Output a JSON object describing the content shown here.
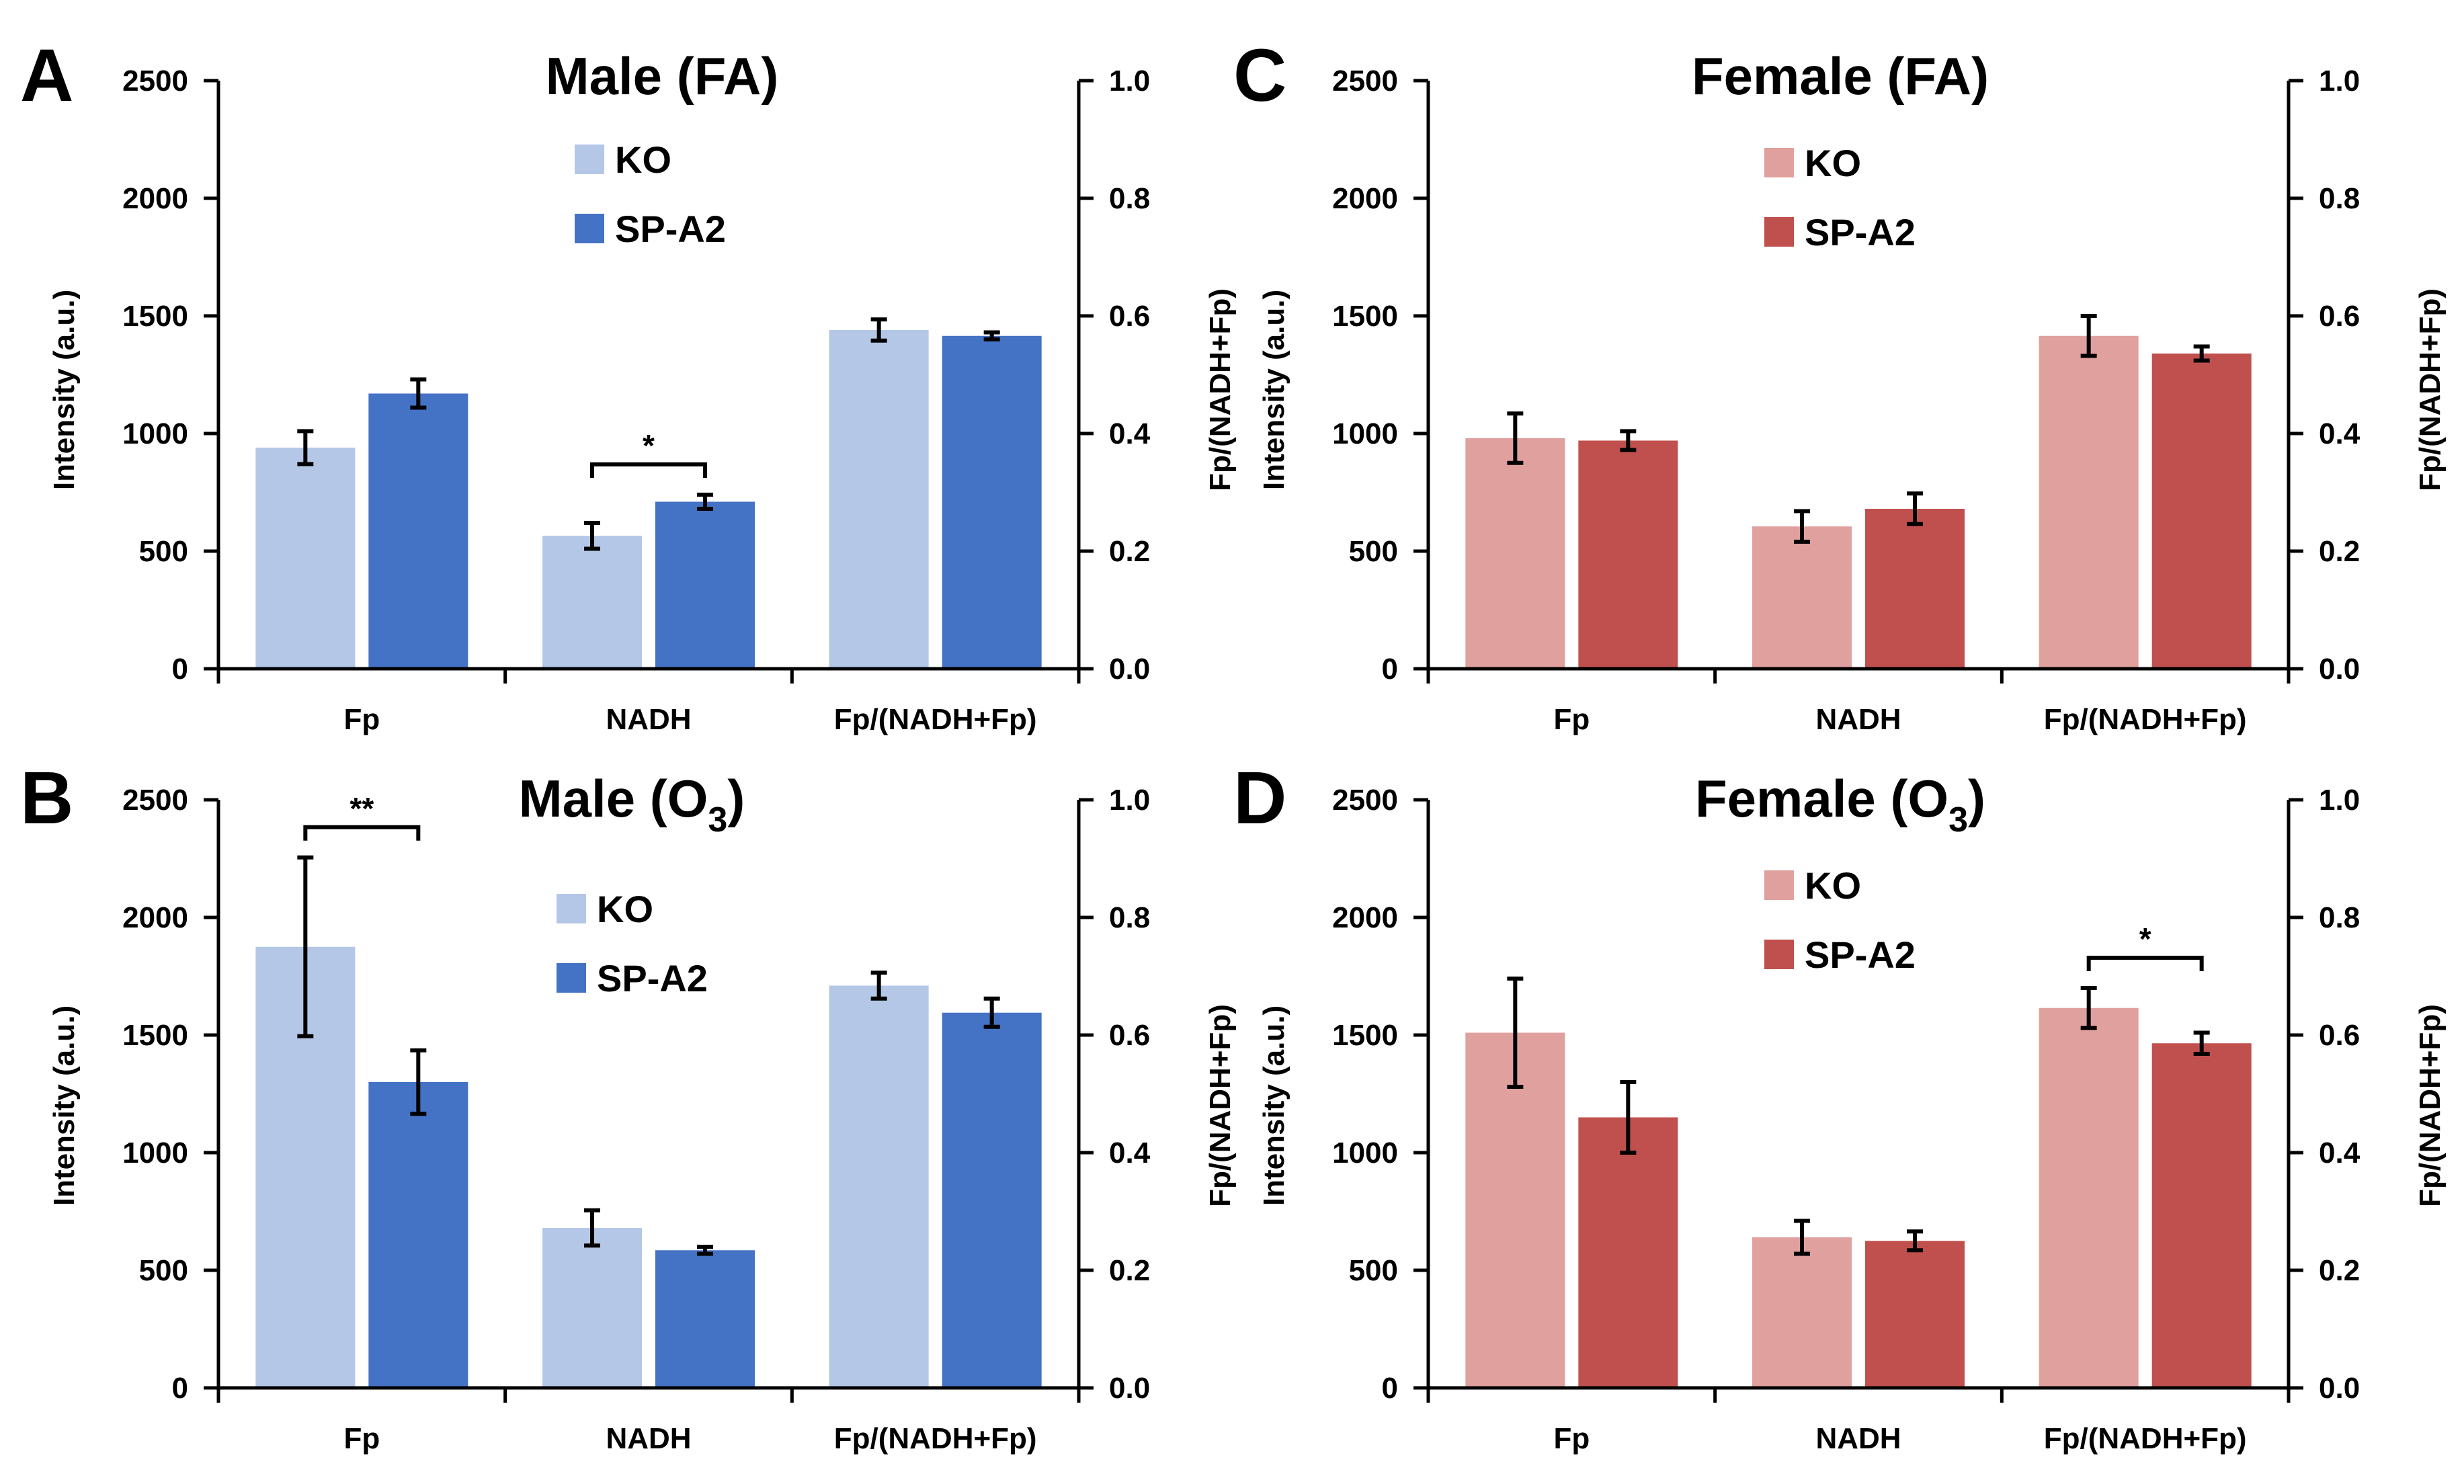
{
  "figure": {
    "colors": {
      "male_ko": "#b4c7e7",
      "male_spa2": "#4472c4",
      "female_ko": "#e0a09e",
      "female_spa2": "#c0504d",
      "axis": "#000000"
    }
  },
  "chart_data": [
    {
      "panel": "A",
      "type": "bar",
      "title": "Male (FA)",
      "categories": [
        "Fp",
        "NADH",
        "Fp/(NADH+Fp)"
      ],
      "ylabel": "Intensity (a.u.)",
      "y2label": "Fp/(NADH+Fp)",
      "ylim": [
        0,
        2500
      ],
      "y2lim": [
        0,
        1.0
      ],
      "yticks": [
        "0",
        "500",
        "1000",
        "1500",
        "2000",
        "2500"
      ],
      "y2ticks": [
        "0.0",
        "0.2",
        "0.4",
        "0.6",
        "0.8",
        "1.0"
      ],
      "legend": [
        "KO",
        "SP-A2"
      ],
      "series": [
        {
          "name": "KO",
          "values": [
            940,
            565,
            1440
          ],
          "errors": [
            70,
            55,
            45
          ]
        },
        {
          "name": "SP-A2",
          "values": [
            1170,
            710,
            1415
          ],
          "errors": [
            60,
            30,
            15
          ]
        }
      ],
      "ratio_values": {
        "KO": 0.576,
        "SP-A2": 0.566
      },
      "significance": [
        {
          "category": "NADH",
          "label": "*"
        }
      ]
    },
    {
      "panel": "B",
      "type": "bar",
      "title_main": "Male (O",
      "title_sub": "3",
      "title_end": ")",
      "categories": [
        "Fp",
        "NADH",
        "Fp/(NADH+Fp)"
      ],
      "ylabel": "Intensity (a.u.)",
      "y2label": "Fp/(NADH+Fp)",
      "ylim": [
        0,
        2500
      ],
      "y2lim": [
        0,
        1.0
      ],
      "yticks": [
        "0",
        "500",
        "1000",
        "1500",
        "2000",
        "2500"
      ],
      "y2ticks": [
        "0.0",
        "0.2",
        "0.4",
        "0.6",
        "0.8",
        "1.0"
      ],
      "legend": [
        "KO",
        "SP-A2"
      ],
      "series": [
        {
          "name": "KO",
          "values": [
            1875,
            680,
            1710
          ],
          "errors": [
            380,
            75,
            55
          ]
        },
        {
          "name": "SP-A2",
          "values": [
            1300,
            585,
            1595
          ],
          "errors": [
            135,
            15,
            60
          ]
        }
      ],
      "ratio_values": {
        "KO": 0.684,
        "SP-A2": 0.638
      },
      "significance": [
        {
          "category": "Fp",
          "label": "**"
        }
      ]
    },
    {
      "panel": "C",
      "type": "bar",
      "title": "Female (FA)",
      "categories": [
        "Fp",
        "NADH",
        "Fp/(NADH+Fp)"
      ],
      "ylabel": "Intensity (a.u.)",
      "y2label": "Fp/(NADH+Fp)",
      "ylim": [
        0,
        2500
      ],
      "y2lim": [
        0,
        1.0
      ],
      "yticks": [
        "0",
        "500",
        "1000",
        "1500",
        "2000",
        "2500"
      ],
      "y2ticks": [
        "0.0",
        "0.2",
        "0.4",
        "0.6",
        "0.8",
        "1.0"
      ],
      "legend": [
        "KO",
        "SP-A2"
      ],
      "series": [
        {
          "name": "KO",
          "values": [
            980,
            605,
            1415
          ],
          "errors": [
            105,
            65,
            85
          ]
        },
        {
          "name": "SP-A2",
          "values": [
            970,
            680,
            1340
          ],
          "errors": [
            40,
            65,
            30
          ]
        }
      ],
      "ratio_values": {
        "KO": 0.566,
        "SP-A2": 0.536
      },
      "significance": []
    },
    {
      "panel": "D",
      "type": "bar",
      "title_main": "Female (O",
      "title_sub": "3",
      "title_end": ")",
      "categories": [
        "Fp",
        "NADH",
        "Fp/(NADH+Fp)"
      ],
      "ylabel": "Intensity (a.u.)",
      "y2label": "Fp/(NADH+Fp)",
      "ylim": [
        0,
        2500
      ],
      "y2lim": [
        0,
        1.0
      ],
      "yticks": [
        "0",
        "500",
        "1000",
        "1500",
        "2000",
        "2500"
      ],
      "y2ticks": [
        "0.0",
        "0.2",
        "0.4",
        "0.6",
        "0.8",
        "1.0"
      ],
      "legend": [
        "KO",
        "SP-A2"
      ],
      "series": [
        {
          "name": "KO",
          "values": [
            1510,
            640,
            1615
          ],
          "errors": [
            230,
            70,
            85
          ]
        },
        {
          "name": "SP-A2",
          "values": [
            1150,
            625,
            1465
          ],
          "errors": [
            150,
            40,
            45
          ]
        }
      ],
      "ratio_values": {
        "KO": 0.646,
        "SP-A2": 0.586
      },
      "significance": [
        {
          "category": "Fp/(NADH+Fp)",
          "label": "*"
        }
      ]
    }
  ]
}
